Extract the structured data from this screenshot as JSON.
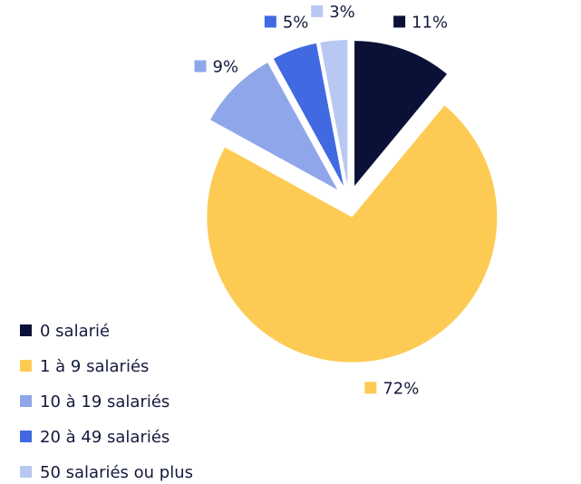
{
  "chart_data": {
    "type": "pie",
    "categories": [
      "0 salarié",
      "1 à 9 salariés",
      "10 à 19 salariés",
      "20 à 49 salariés",
      "50 salariés ou plus"
    ],
    "values": [
      11,
      72,
      9,
      5,
      3
    ],
    "value_labels": [
      "11%",
      "72%",
      "9%",
      "5%",
      "3%"
    ],
    "colors": [
      "#0b1136",
      "#fdcb53",
      "#8fa7ea",
      "#4169e1",
      "#b9c8f2"
    ],
    "legend": "bottom-left"
  }
}
